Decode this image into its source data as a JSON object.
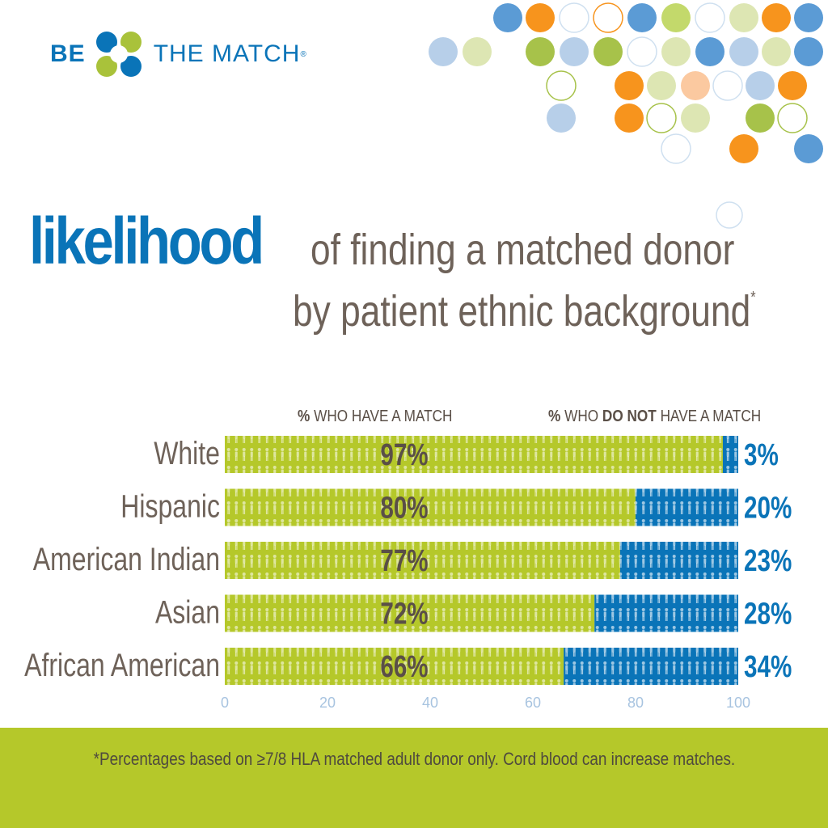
{
  "logo": {
    "text_be": "BE",
    "text_match": "THE MATCH",
    "registered": "®",
    "mark_colors": [
      "#0a74b8",
      "#a9c23a"
    ]
  },
  "headline": {
    "emphasis": "likelihood",
    "line1": "of finding a matched donor",
    "line2": "by patient ethnic background",
    "asterisk": "*"
  },
  "columns": {
    "left": {
      "symbol": "%",
      "text": "WHO HAVE A MATCH"
    },
    "right": {
      "symbol": "%",
      "text_pre": "WHO",
      "text_bold": "DO NOT",
      "text_post": "HAVE A MATCH"
    }
  },
  "colors": {
    "match": "#b5c82a",
    "no_match": "#0a74b8",
    "label": "#6e6259",
    "tick": "#a8c4e0",
    "dot_palette": [
      "#5b9bd5",
      "#f7941d",
      "#ffffff",
      "#c3d96b",
      "#b7cfe9",
      "#dde6b3",
      "#fbc9a0",
      "#a7c24a"
    ]
  },
  "chart_data": {
    "type": "bar",
    "orientation": "horizontal",
    "stacked": true,
    "categories": [
      "White",
      "Hispanic",
      "American Indian",
      "Asian",
      "African American"
    ],
    "series": [
      {
        "name": "% WHO HAVE A MATCH",
        "values": [
          97,
          80,
          77,
          72,
          66
        ],
        "labels": [
          "97%",
          "80%",
          "77%",
          "72%",
          "66%"
        ]
      },
      {
        "name": "% WHO DO NOT HAVE A MATCH",
        "values": [
          3,
          20,
          23,
          28,
          34
        ],
        "labels": [
          "3%",
          "20%",
          "23%",
          "28%",
          "34%"
        ]
      }
    ],
    "xlim": [
      0,
      100
    ],
    "xticks": [
      0,
      20,
      40,
      60,
      80,
      100
    ],
    "xlabel": "",
    "ylabel": "",
    "grid": false,
    "legend": "top"
  },
  "footnote": "*Percentages based on ≥7/8 HLA matched adult donor only. Cord blood can increase matches."
}
